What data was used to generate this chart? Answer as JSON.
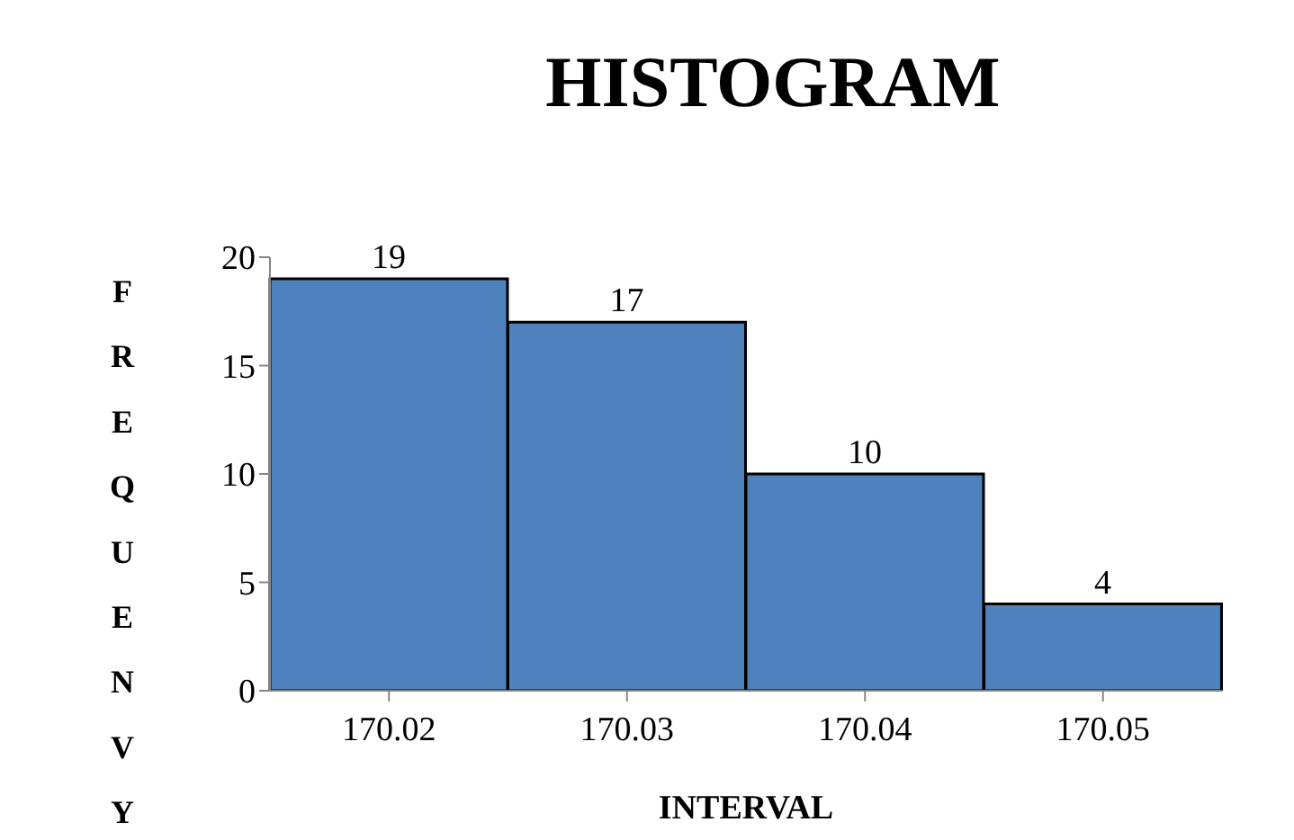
{
  "chart_data": {
    "type": "bar",
    "title": "HISTOGRAM",
    "xlabel": "INTERVAL",
    "ylabel": "FREQUENVY",
    "categories": [
      "170.02",
      "170.03",
      "170.04",
      "170.05"
    ],
    "values": [
      19,
      17,
      10,
      4
    ],
    "color": "#4f81bd",
    "ylim": [
      0,
      20
    ],
    "yticks": [
      0,
      5,
      10,
      15,
      20
    ],
    "grid": false,
    "legend": false,
    "data_labels": true
  }
}
